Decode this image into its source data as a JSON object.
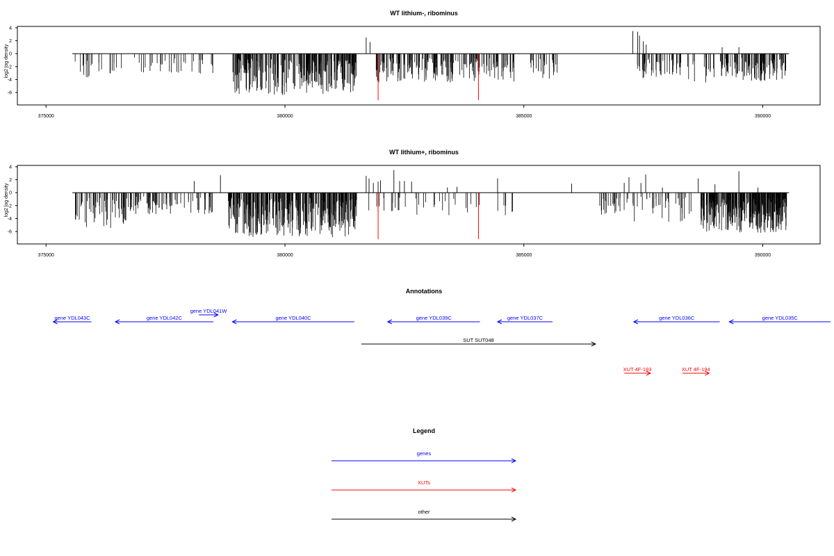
{
  "chart_data": [
    {
      "type": "bar",
      "title": "WT lithium-, ribominus",
      "ylabel": "log2 log density",
      "xlabel": "",
      "ylim": [
        -7.5,
        4
      ],
      "yticks": [
        4,
        2,
        0,
        -2,
        -4,
        -6
      ],
      "xlim": [
        374400,
        391200
      ],
      "xticks": [
        375000,
        380000,
        385000,
        390000
      ],
      "seed": 17,
      "marked_bars": [
        {
          "x": 381950,
          "value": -7.2,
          "color": "#ff0000"
        },
        {
          "x": 384050,
          "value": -7.2,
          "color": "#ff0000"
        }
      ],
      "density_regions": [
        {
          "start": 375600,
          "end": 376700,
          "n": 22,
          "min": -4.0,
          "max": -0.6
        },
        {
          "start": 376800,
          "end": 378500,
          "n": 32,
          "min": -3.3,
          "max": -0.6
        },
        {
          "start": 378880,
          "end": 381500,
          "n": 260,
          "min": -6.4,
          "max": -0.8
        },
        {
          "start": 381900,
          "end": 384800,
          "n": 200,
          "min": -4.5,
          "max": -0.6
        },
        {
          "start": 385100,
          "end": 385700,
          "n": 28,
          "min": -4.0,
          "max": -0.8
        },
        {
          "start": 387350,
          "end": 388300,
          "n": 50,
          "min": -4.0,
          "max": -0.6
        },
        {
          "start": 388400,
          "end": 389000,
          "n": 18,
          "min": -4.5,
          "max": -0.6
        },
        {
          "start": 389100,
          "end": 390500,
          "n": 120,
          "min": -4.3,
          "max": -0.6
        }
      ],
      "positive_bars": [
        {
          "x": 381700,
          "value": 2.5
        },
        {
          "x": 381780,
          "value": 1.8
        },
        {
          "x": 387280,
          "value": 3.5
        },
        {
          "x": 387380,
          "value": 3.4
        },
        {
          "x": 387420,
          "value": 2.8
        },
        {
          "x": 387500,
          "value": 1.9
        },
        {
          "x": 387560,
          "value": 1.4
        },
        {
          "x": 389150,
          "value": 1.0
        },
        {
          "x": 389500,
          "value": 1.0
        }
      ]
    },
    {
      "type": "bar",
      "title": "WT lithium+, ribominus",
      "ylabel": "log2 log density",
      "xlabel": "",
      "ylim": [
        -7.5,
        4
      ],
      "yticks": [
        4,
        2,
        0,
        -2,
        -4,
        -6
      ],
      "xlim": [
        374400,
        391200
      ],
      "xticks": [
        375000,
        380000,
        385000,
        390000
      ],
      "seed": 41,
      "marked_bars": [
        {
          "x": 381950,
          "value": -7.2,
          "color": "#ff0000"
        },
        {
          "x": 384050,
          "value": -7.2,
          "color": "#ff0000"
        }
      ],
      "density_regions": [
        {
          "start": 375600,
          "end": 376800,
          "n": 60,
          "min": -5.5,
          "max": -0.8
        },
        {
          "start": 376800,
          "end": 378500,
          "n": 70,
          "min": -3.8,
          "max": -0.6
        },
        {
          "start": 378800,
          "end": 381500,
          "n": 320,
          "min": -7.0,
          "max": -0.8
        },
        {
          "start": 381700,
          "end": 384800,
          "n": 40,
          "min": -3.5,
          "max": -0.6
        },
        {
          "start": 386500,
          "end": 388500,
          "n": 60,
          "min": -4.5,
          "max": -0.6
        },
        {
          "start": 388700,
          "end": 390500,
          "n": 300,
          "min": -6.3,
          "max": -0.8
        }
      ],
      "positive_bars": [
        {
          "x": 378100,
          "value": 1.8
        },
        {
          "x": 378650,
          "value": 2.7
        },
        {
          "x": 381700,
          "value": 2.6
        },
        {
          "x": 381760,
          "value": 2.2
        },
        {
          "x": 381850,
          "value": 1.5
        },
        {
          "x": 381950,
          "value": 1.7
        },
        {
          "x": 382000,
          "value": 1.9
        },
        {
          "x": 382280,
          "value": 3.5
        },
        {
          "x": 382400,
          "value": 1.8
        },
        {
          "x": 382500,
          "value": 1.8
        },
        {
          "x": 382650,
          "value": 1.7
        },
        {
          "x": 383400,
          "value": 0.8
        },
        {
          "x": 383600,
          "value": 0.9
        },
        {
          "x": 384450,
          "value": 2.2
        },
        {
          "x": 386000,
          "value": 1.4
        },
        {
          "x": 387100,
          "value": 1.5
        },
        {
          "x": 387200,
          "value": 2.4
        },
        {
          "x": 387450,
          "value": 1.5
        },
        {
          "x": 387550,
          "value": 2.8
        },
        {
          "x": 387900,
          "value": 0.8
        },
        {
          "x": 388650,
          "value": 2.2
        },
        {
          "x": 389000,
          "value": 1.3
        },
        {
          "x": 389500,
          "value": 3.3
        },
        {
          "x": 389900,
          "value": 0.8
        }
      ]
    }
  ],
  "annotations": {
    "title": "Annotations",
    "items": [
      {
        "label": "gene YDL043C",
        "kind": "gene",
        "start": 375150,
        "end": 375950,
        "strand": "-",
        "row": 1
      },
      {
        "label": "gene YDL042C",
        "kind": "gene",
        "start": 376450,
        "end": 378500,
        "strand": "-",
        "row": 1
      },
      {
        "label": "gene YDL041W",
        "kind": "gene",
        "start": 378200,
        "end": 378600,
        "strand": "+",
        "row": 0
      },
      {
        "label": "gene YDL040C",
        "kind": "gene",
        "start": 378900,
        "end": 381450,
        "strand": "-",
        "row": 1
      },
      {
        "label": "gene YDL039C",
        "kind": "gene",
        "start": 382150,
        "end": 384080,
        "strand": "-",
        "row": 1
      },
      {
        "label": "gene YDL037C",
        "kind": "gene",
        "start": 384450,
        "end": 385600,
        "strand": "-",
        "row": 1
      },
      {
        "label": "gene YDL036C",
        "kind": "gene",
        "start": 387300,
        "end": 389100,
        "strand": "-",
        "row": 1
      },
      {
        "label": "gene YDL035C",
        "kind": "gene",
        "start": 389300,
        "end": 391420,
        "strand": "-",
        "row": 1
      },
      {
        "label": "SUT SUT048",
        "kind": "other",
        "start": 381600,
        "end": 386500,
        "strand": "+",
        "row": 2
      },
      {
        "label": "XUT 4F-193",
        "kind": "xut",
        "start": 387100,
        "end": 387650,
        "strand": "+",
        "row": 3
      },
      {
        "label": "XUT 4F-194",
        "kind": "xut",
        "start": 388320,
        "end": 388880,
        "strand": "+",
        "row": 3
      }
    ]
  },
  "legend": {
    "title": "Legend",
    "items": [
      {
        "label": "genes",
        "color": "#0000ff"
      },
      {
        "label": "XUTs",
        "color": "#ff0000"
      },
      {
        "label": "other",
        "color": "#000000"
      }
    ]
  },
  "colors": {
    "gene": "#0000ff",
    "xut": "#ff0000",
    "other": "#000000"
  }
}
